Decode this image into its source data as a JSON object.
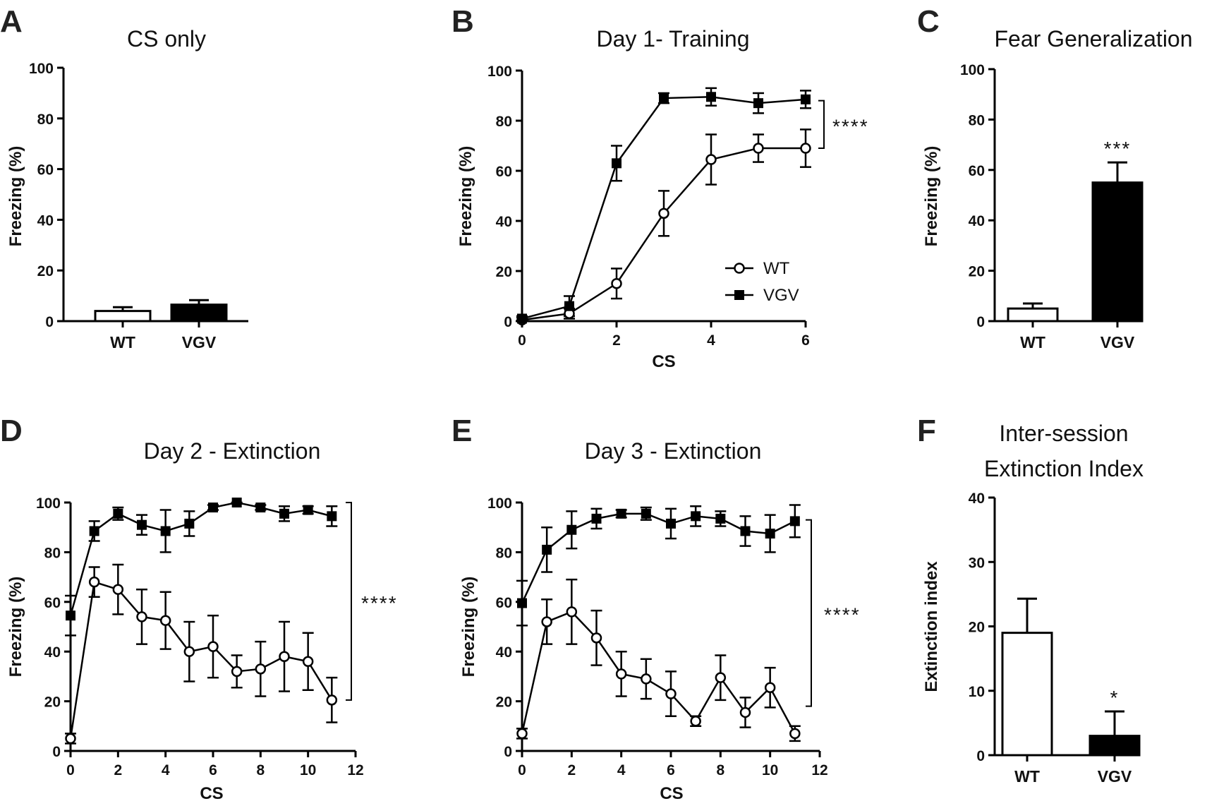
{
  "chart_data": [
    {
      "panel": "A",
      "type": "bar",
      "title": "CS only",
      "ylabel": "Freezing (%)",
      "xlabel": "",
      "ylim": [
        0,
        100
      ],
      "yticks": [
        0,
        20,
        40,
        60,
        80,
        100
      ],
      "categories": [
        "WT",
        "VGV"
      ],
      "values": [
        4,
        6.5
      ],
      "errors": [
        1.5,
        1.8
      ],
      "fills": [
        "#ffffff",
        "#000000"
      ],
      "annotations": []
    },
    {
      "panel": "B",
      "type": "line",
      "title": "Day 1- Training",
      "ylabel": "Freezing (%)",
      "xlabel": "CS",
      "xlim": [
        0,
        6
      ],
      "ylim": [
        0,
        100
      ],
      "xticks": [
        0,
        2,
        4,
        6
      ],
      "yticks": [
        0,
        20,
        40,
        60,
        80,
        100
      ],
      "legend": "inside-lower-right",
      "series": [
        {
          "name": "WT",
          "marker": "open-circle",
          "x": [
            0,
            1,
            2,
            3,
            4,
            5,
            6
          ],
          "values": [
            0.5,
            3,
            15,
            43,
            64.5,
            69,
            69
          ],
          "errors": [
            1,
            2,
            6,
            9,
            10,
            5.5,
            7.5
          ]
        },
        {
          "name": "VGV",
          "marker": "filled-square",
          "x": [
            0,
            1,
            2,
            3,
            4,
            5,
            6
          ],
          "values": [
            1,
            6,
            63,
            89,
            89.5,
            87,
            88.5
          ],
          "errors": [
            1,
            4,
            7,
            2,
            3.5,
            4,
            3.5
          ]
        }
      ],
      "significance": "****"
    },
    {
      "panel": "C",
      "type": "bar",
      "title": "Fear Generalization",
      "ylabel": "Freezing (%)",
      "xlabel": "",
      "ylim": [
        0,
        100
      ],
      "yticks": [
        0,
        20,
        40,
        60,
        80,
        100
      ],
      "categories": [
        "WT",
        "VGV"
      ],
      "values": [
        5,
        55
      ],
      "errors": [
        2,
        8
      ],
      "fills": [
        "#ffffff",
        "#000000"
      ],
      "annotations": [
        "",
        "***"
      ]
    },
    {
      "panel": "D",
      "type": "line",
      "title": "Day 2 - Extinction",
      "ylabel": "Freezing (%)",
      "xlabel": "CS",
      "xlim": [
        0,
        12
      ],
      "ylim": [
        0,
        100
      ],
      "xticks": [
        0,
        2,
        4,
        6,
        8,
        10,
        12
      ],
      "yticks": [
        0,
        20,
        40,
        60,
        80,
        100
      ],
      "series": [
        {
          "name": "WT",
          "marker": "open-circle",
          "x": [
            0,
            1,
            2,
            3,
            4,
            5,
            6,
            7,
            8,
            9,
            10,
            11
          ],
          "values": [
            5,
            68,
            65,
            54,
            52.5,
            40,
            42,
            32,
            33,
            38,
            36,
            20.5
          ],
          "errors": [
            2,
            6,
            10,
            11,
            11.5,
            12,
            12.5,
            6.5,
            11,
            14,
            11.5,
            9
          ]
        },
        {
          "name": "VGV",
          "marker": "filled-square",
          "x": [
            0,
            1,
            2,
            3,
            4,
            5,
            6,
            7,
            8,
            9,
            10,
            11
          ],
          "values": [
            54.5,
            88.5,
            95.5,
            91,
            88.5,
            91.5,
            98,
            100,
            98,
            95.5,
            97,
            94.5
          ],
          "errors": [
            8,
            4,
            2.5,
            4,
            8.5,
            5,
            1,
            0.5,
            1,
            3,
            1.5,
            4
          ]
        }
      ],
      "significance": "****"
    },
    {
      "panel": "E",
      "type": "line",
      "title": "Day 3 - Extinction",
      "ylabel": "Freezing (%)",
      "xlabel": "CS",
      "xlim": [
        0,
        12
      ],
      "ylim": [
        0,
        100
      ],
      "xticks": [
        0,
        2,
        4,
        6,
        8,
        10,
        12
      ],
      "yticks": [
        0,
        20,
        40,
        60,
        80,
        100
      ],
      "series": [
        {
          "name": "WT",
          "marker": "open-circle",
          "x": [
            0,
            1,
            2,
            3,
            4,
            5,
            6,
            7,
            8,
            9,
            10,
            11
          ],
          "values": [
            7,
            52,
            56,
            45.5,
            31,
            29,
            23,
            12,
            29.5,
            15.5,
            25.5,
            7
          ],
          "errors": [
            2,
            9,
            13,
            11,
            9,
            8,
            9,
            2,
            9,
            6,
            8,
            3
          ]
        },
        {
          "name": "VGV",
          "marker": "filled-square",
          "x": [
            0,
            1,
            2,
            3,
            4,
            5,
            6,
            7,
            8,
            9,
            10,
            11
          ],
          "values": [
            59.5,
            81,
            89,
            93.5,
            95.5,
            95.5,
            91.5,
            94.5,
            93.5,
            88.5,
            87.5,
            92.5
          ],
          "errors": [
            9,
            9,
            7.5,
            4,
            1.5,
            2.5,
            6,
            4,
            3,
            6,
            7.5,
            6.5
          ]
        }
      ],
      "significance": "****"
    },
    {
      "panel": "F",
      "type": "bar",
      "title": [
        "Inter-session",
        "Extinction Index"
      ],
      "ylabel": "Extinction index",
      "xlabel": "",
      "ylim": [
        0,
        40
      ],
      "yticks": [
        0,
        10,
        20,
        30,
        40
      ],
      "categories": [
        "WT",
        "VGV"
      ],
      "values": [
        19,
        3
      ],
      "errors": [
        5.3,
        3.8
      ],
      "fills": [
        "#ffffff",
        "#000000"
      ],
      "annotations": [
        "",
        "*"
      ]
    }
  ]
}
